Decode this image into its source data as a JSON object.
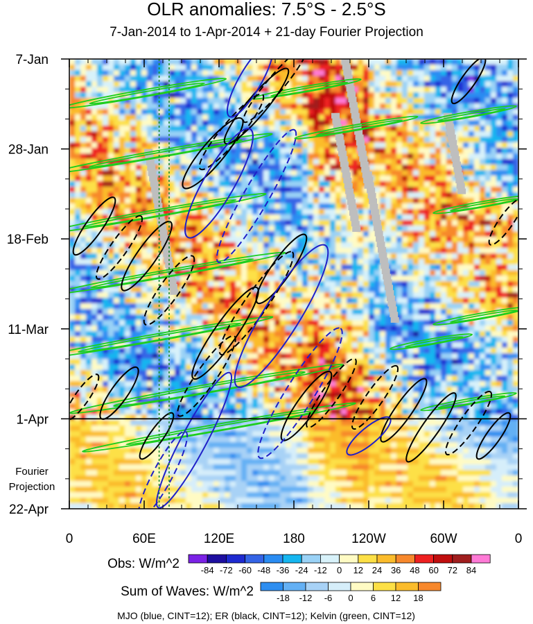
{
  "chart_data": {
    "type": "heatmap",
    "title": "OLR anomalies: 7.5°S - 2.5°S",
    "subtitle": "7-Jan-2014 to 1-Apr-2014 + 21-day Fourier Projection",
    "x_tick_labels": [
      "0",
      "60E",
      "120E",
      "180",
      "120W",
      "60W",
      "0"
    ],
    "x_values": [
      0,
      60,
      120,
      180,
      240,
      300,
      360
    ],
    "xlim": [
      0,
      360
    ],
    "y_tick_labels": [
      "7-Jan",
      "28-Jan",
      "18-Feb",
      "11-Mar",
      "1-Apr",
      "22-Apr"
    ],
    "y_values": [
      "2014-01-07",
      "2014-01-28",
      "2014-02-18",
      "2014-03-11",
      "2014-04-01",
      "2014-04-22"
    ],
    "ylim": [
      "2014-01-07",
      "2014-04-22"
    ],
    "projection_label": "Fourier\nProjection",
    "projection_start": "2014-04-01",
    "obs_colorbar": {
      "label": "Obs: W/m^2",
      "levels": [
        -84,
        -72,
        -60,
        -48,
        -36,
        -24,
        -12,
        0,
        12,
        24,
        36,
        48,
        60,
        72,
        84
      ],
      "colors": [
        "#7b22e6",
        "#1e0fa0",
        "#1e2ad0",
        "#3464e6",
        "#2a8cf2",
        "#16b6f0",
        "#9ad2f6",
        "#d8f2fa",
        "#fffbc4",
        "#fde046",
        "#fbbc2c",
        "#f7882c",
        "#ee2020",
        "#c00e0e",
        "#a01e1e",
        "#ff7ad6"
      ]
    },
    "waves_colorbar": {
      "label": "Sum of Waves: W/m^2",
      "levels": [
        -18,
        -12,
        -6,
        0,
        6,
        12,
        18
      ],
      "colors": [
        "#2e8ef0",
        "#64b0f4",
        "#a8d2f6",
        "#d6eefa",
        "#fffbc4",
        "#fde046",
        "#fbbc2c",
        "#f7882c"
      ]
    },
    "contour_legend": "MJO (blue, CINT=12); ER (black, CINT=12); Kelvin (green, CINT=12)",
    "contour_colors": {
      "MJO": "#1f20c8",
      "ER": "#000000",
      "Kelvin": "#1ecd1e"
    },
    "missing_color": "#bebebe",
    "reference_lines": [
      {
        "date": "2014-04-01",
        "style": "solid",
        "color": "#000000"
      },
      {
        "lon": 72,
        "style": "dashed",
        "color": "#1c8a2e"
      },
      {
        "lon": 80,
        "style": "dashed",
        "color": "#1c8a2e"
      }
    ],
    "ER_contours": [
      {
        "lon": 62,
        "date": "2014-02-22",
        "length": 60,
        "width": 14,
        "angle": -55,
        "sign": 1
      },
      {
        "lon": 80,
        "date": "2014-03-02",
        "length": 60,
        "width": 14,
        "angle": -55,
        "sign": -1
      },
      {
        "lon": 40,
        "date": "2014-02-20",
        "length": 55,
        "width": 12,
        "angle": -55,
        "sign": -1
      },
      {
        "lon": 20,
        "date": "2014-02-15",
        "length": 50,
        "width": 12,
        "angle": -55,
        "sign": 1
      },
      {
        "lon": 115,
        "date": "2014-01-29",
        "length": 65,
        "width": 16,
        "angle": -50,
        "sign": 1
      },
      {
        "lon": 130,
        "date": "2014-01-24",
        "length": 70,
        "width": 14,
        "angle": -50,
        "sign": -1
      },
      {
        "lon": 150,
        "date": "2014-01-18",
        "length": 70,
        "width": 14,
        "angle": -50,
        "sign": 1
      },
      {
        "lon": 165,
        "date": "2014-01-13",
        "length": 70,
        "width": 12,
        "angle": -50,
        "sign": -1
      },
      {
        "lon": 125,
        "date": "2014-03-12",
        "length": 80,
        "width": 16,
        "angle": -55,
        "sign": 1
      },
      {
        "lon": 110,
        "date": "2014-03-22",
        "length": 70,
        "width": 14,
        "angle": -55,
        "sign": -1
      },
      {
        "lon": 150,
        "date": "2014-03-05",
        "length": 90,
        "width": 16,
        "angle": -55,
        "sign": -1
      },
      {
        "lon": 170,
        "date": "2014-02-25",
        "length": 60,
        "width": 14,
        "angle": -55,
        "sign": 1
      },
      {
        "lon": 190,
        "date": "2014-03-29",
        "length": 60,
        "width": 14,
        "angle": -55,
        "sign": 1
      },
      {
        "lon": 210,
        "date": "2014-03-26",
        "length": 60,
        "width": 12,
        "angle": -55,
        "sign": -1
      },
      {
        "lon": 245,
        "date": "2014-03-27",
        "length": 55,
        "width": 12,
        "angle": -55,
        "sign": -1
      },
      {
        "lon": 268,
        "date": "2014-03-30",
        "length": 55,
        "width": 12,
        "angle": -55,
        "sign": 1
      },
      {
        "lon": 290,
        "date": "2014-04-03",
        "length": 60,
        "width": 12,
        "angle": -55,
        "sign": 1
      },
      {
        "lon": 320,
        "date": "2014-04-02",
        "length": 55,
        "width": 12,
        "angle": -55,
        "sign": -1
      },
      {
        "lon": 350,
        "date": "2014-02-14",
        "length": 40,
        "width": 10,
        "angle": -55,
        "sign": -1
      },
      {
        "lon": 340,
        "date": "2014-04-05",
        "length": 40,
        "width": 10,
        "angle": -55,
        "sign": 1
      },
      {
        "lon": 10,
        "date": "2014-03-27",
        "length": 40,
        "width": 10,
        "angle": -55,
        "sign": -1
      },
      {
        "lon": 40,
        "date": "2014-03-26",
        "length": 45,
        "width": 12,
        "angle": -55,
        "sign": 1
      },
      {
        "lon": 70,
        "date": "2014-04-05",
        "length": 40,
        "width": 10,
        "angle": -55,
        "sign": 1
      },
      {
        "lon": 320,
        "date": "2014-01-12",
        "length": 40,
        "width": 10,
        "angle": -55,
        "sign": 1
      }
    ],
    "MJO_contours": [
      {
        "lon": 120,
        "date": "2014-02-05",
        "length": 90,
        "width": 22,
        "angle": -60,
        "sign": 1
      },
      {
        "lon": 150,
        "date": "2014-02-08",
        "length": 110,
        "width": 18,
        "angle": -60,
        "sign": -1
      },
      {
        "lon": 170,
        "date": "2014-03-08",
        "length": 120,
        "width": 26,
        "angle": -58,
        "sign": 1
      },
      {
        "lon": 185,
        "date": "2014-03-26",
        "length": 110,
        "width": 20,
        "angle": -58,
        "sign": -1
      },
      {
        "lon": 100,
        "date": "2014-04-06",
        "length": 110,
        "width": 18,
        "angle": -62,
        "sign": 1
      },
      {
        "lon": 75,
        "date": "2014-04-14",
        "length": 70,
        "width": 14,
        "angle": -62,
        "sign": -1
      },
      {
        "lon": 145,
        "date": "2014-01-12",
        "length": 60,
        "width": 16,
        "angle": -60,
        "sign": 1
      },
      {
        "lon": 240,
        "date": "2014-04-05",
        "length": 40,
        "width": 12,
        "angle": -40,
        "sign": 1
      }
    ],
    "Kelvin_contours": [
      {
        "lon": 60,
        "date": "2014-01-15",
        "length": 120,
        "width": 5,
        "angle": -10,
        "sign": 1
      },
      {
        "lon": 75,
        "date": "2014-01-29",
        "length": 160,
        "width": 5,
        "angle": -10,
        "sign": 1
      },
      {
        "lon": 70,
        "date": "2014-02-12",
        "length": 160,
        "width": 5,
        "angle": -10,
        "sign": 1
      },
      {
        "lon": 80,
        "date": "2014-02-26",
        "length": 170,
        "width": 5,
        "angle": -10,
        "sign": 1
      },
      {
        "lon": 70,
        "date": "2014-03-13",
        "length": 170,
        "width": 5,
        "angle": -10,
        "sign": 1
      },
      {
        "lon": 110,
        "date": "2014-03-25",
        "length": 200,
        "width": 6,
        "angle": -10,
        "sign": 1
      },
      {
        "lon": 120,
        "date": "2014-04-03",
        "length": 200,
        "width": 5,
        "angle": -10,
        "sign": 1
      },
      {
        "lon": 190,
        "date": "2014-01-14",
        "length": 80,
        "width": 4,
        "angle": -10,
        "sign": 1
      },
      {
        "lon": 230,
        "date": "2014-01-23",
        "length": 90,
        "width": 4,
        "angle": -10,
        "sign": 1
      },
      {
        "lon": 320,
        "date": "2014-01-20",
        "length": 70,
        "width": 4,
        "angle": -10,
        "sign": 1
      },
      {
        "lon": 330,
        "date": "2014-02-10",
        "length": 70,
        "width": 4,
        "angle": -10,
        "sign": 1
      },
      {
        "lon": 330,
        "date": "2014-03-08",
        "length": 70,
        "width": 4,
        "angle": -10,
        "sign": 1
      },
      {
        "lon": 320,
        "date": "2014-03-28",
        "length": 70,
        "width": 4,
        "angle": -10,
        "sign": 1
      },
      {
        "lon": 290,
        "date": "2014-03-14",
        "length": 60,
        "width": 4,
        "angle": -10,
        "sign": 1
      }
    ]
  }
}
